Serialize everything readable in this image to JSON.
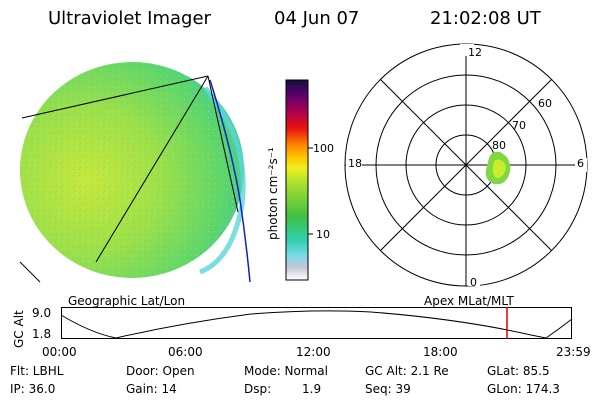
{
  "header": {
    "title": "Ultraviolet Imager",
    "date": "04 Jun 07",
    "time": "21:02:08 UT"
  },
  "colorbar": {
    "label": "photon cm⁻²s⁻¹",
    "tick_100": "100",
    "tick_10": "10"
  },
  "polar": {
    "mlt_top": "12",
    "mlt_left": "18",
    "mlt_right": "6",
    "mlt_bottom": "0",
    "lat_60": "60",
    "lat_70": "70",
    "lat_80": "80"
  },
  "track": {
    "left_label": "Geographic Lat/Lon",
    "right_label": "Apex MLat/MLT",
    "axis_label": "GC Alt",
    "y_top": "9.0",
    "y_bottom": "1.8",
    "time_ticks": [
      "00:00",
      "06:00",
      "12:00",
      "18:00",
      "23:59"
    ]
  },
  "info": {
    "flt": "Flt: LBHL",
    "ip": "IP: 36.0",
    "door": "Door: Open",
    "gain": "Gain: 14",
    "mode": "Mode: Normal",
    "dsp_label": "Dsp:",
    "dsp_value": "1.9",
    "gcalt": "GC Alt: 2.1 Re",
    "seq": "Seq: 39",
    "glat": "GLat:  85.5",
    "glon": "GLon: 174.3"
  }
}
